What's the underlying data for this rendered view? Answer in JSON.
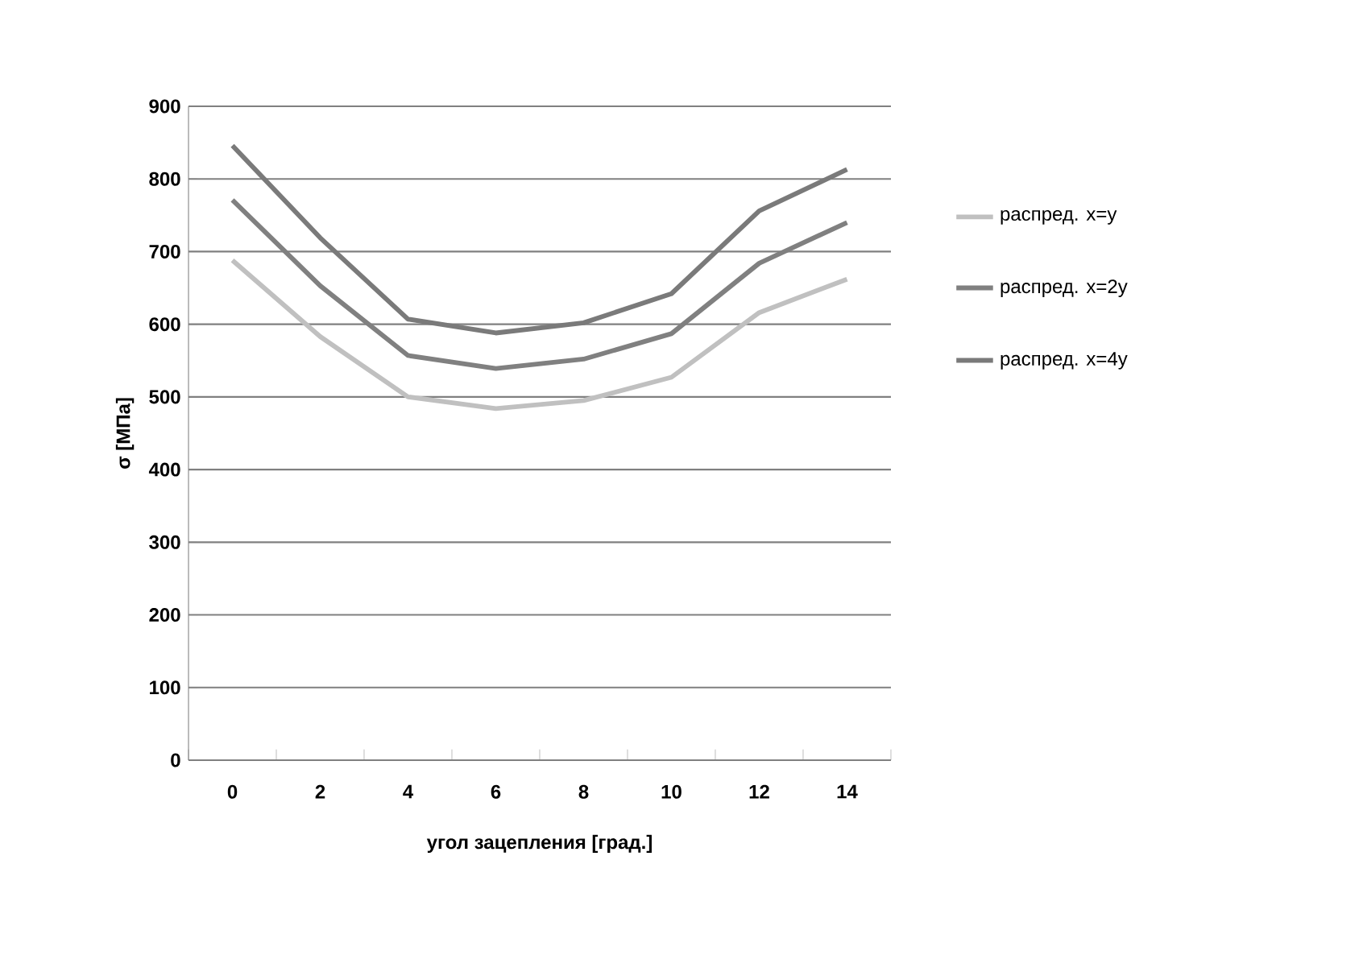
{
  "chart_data": {
    "type": "line",
    "xlabel": "угол зацепления  [град.]",
    "ylabel": "σ [МПа]",
    "categories": [
      "0",
      "2",
      "4",
      "6",
      "8",
      "10",
      "12",
      "14"
    ],
    "series": [
      {
        "name": "распред. x=y",
        "color": "#c0c0c0",
        "values": [
          688,
          583,
          500,
          484,
          495,
          527,
          616,
          662
        ]
      },
      {
        "name": "распред. x=2y",
        "color": "#808080",
        "values": [
          771,
          653,
          557,
          539,
          552,
          587,
          684,
          740
        ]
      },
      {
        "name": "распред. x=4y",
        "color": "#7a7a7a",
        "values": [
          846,
          719,
          607,
          588,
          602,
          642,
          756,
          813
        ]
      }
    ],
    "ylim": [
      0,
      900
    ],
    "yticks": [
      0,
      100,
      200,
      300,
      400,
      500,
      600,
      700,
      800,
      900
    ],
    "grid": "y",
    "legend": "right",
    "marker": "none",
    "line_style": "solid"
  }
}
